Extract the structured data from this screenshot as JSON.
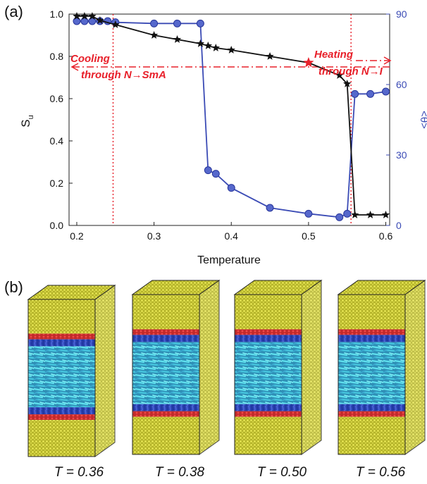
{
  "panel_a_label": "(a)",
  "panel_b_label": "(b)",
  "chart_data": {
    "type": "line",
    "xlabel": "Temperature",
    "ylabel": "S",
    "ylabel_sub": "u",
    "y2label": "<θ>",
    "xlim": [
      0.19,
      0.605
    ],
    "ylim": [
      0,
      1.0
    ],
    "y2lim": [
      0,
      90
    ],
    "xticks": [
      "0.2",
      "0.3",
      "0.4",
      "0.5",
      "0.6"
    ],
    "yticks": [
      "0.0",
      "0.2",
      "0.4",
      "0.6",
      "0.8",
      "1.0"
    ],
    "y2ticks": [
      "0",
      "30",
      "60",
      "90"
    ],
    "grid": false,
    "colors": {
      "su": "#111111",
      "theta": "#3b4bb5",
      "annotation": "#e8202a"
    },
    "series": [
      {
        "axis": "left",
        "marker": "star",
        "x": [
          0.2,
          0.21,
          0.22,
          0.23,
          0.25,
          0.3,
          0.33,
          0.36,
          0.37,
          0.38,
          0.4,
          0.45,
          0.5,
          0.54,
          0.55,
          0.56,
          0.58,
          0.6
        ],
        "values": [
          0.99,
          0.99,
          0.99,
          0.97,
          0.95,
          0.9,
          0.88,
          0.86,
          0.85,
          0.84,
          0.83,
          0.8,
          0.77,
          0.71,
          0.67,
          0.05,
          0.05,
          0.05
        ]
      },
      {
        "axis": "right",
        "marker": "circle",
        "x": [
          0.2,
          0.21,
          0.22,
          0.23,
          0.24,
          0.25,
          0.3,
          0.33,
          0.36,
          0.37,
          0.38,
          0.4,
          0.45,
          0.5,
          0.54,
          0.55,
          0.56,
          0.58,
          0.6
        ],
        "values": [
          87,
          87,
          87,
          87,
          87,
          86.5,
          86,
          86,
          86,
          23.5,
          22,
          16,
          7.5,
          5,
          3.5,
          5,
          56,
          56,
          57
        ]
      }
    ],
    "vlines": [
      0.247,
      0.555
    ],
    "annotations": {
      "cooling_line1": "Cooling",
      "cooling_line2": "through N→SmA",
      "heating_line1": "Heating",
      "heating_line2": "through N→I"
    }
  },
  "snapshots": {
    "labels": [
      "T = 0.36",
      "T = 0.38",
      "T = 0.50",
      "T = 0.56"
    ]
  }
}
